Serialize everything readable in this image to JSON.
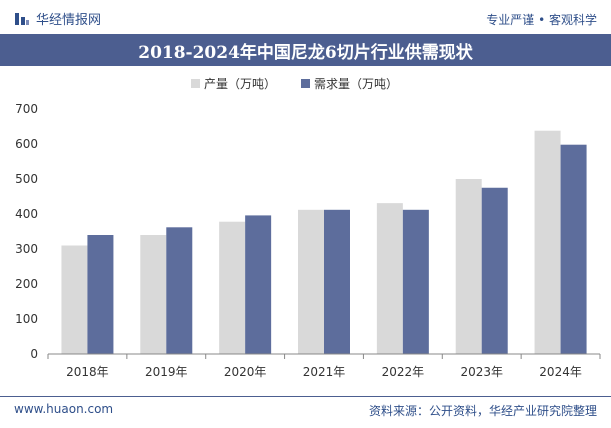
{
  "header": {
    "brand_name": "华经情报网",
    "brand_icon": "bar-chart-logo-icon",
    "tagline": "专业严谨 • 客观科学"
  },
  "footer": {
    "website": "www.huaon.com",
    "source": "资料来源：公开资料，华经产业研究院整理"
  },
  "colors": {
    "title_bar": "#4c5e90",
    "production": "#d9d9d9",
    "demand": "#5d6d9c",
    "brand_text": "#2f4f8a"
  },
  "chart_data": {
    "type": "bar",
    "title": "2018-2024年中国尼龙6切片行业供需现状",
    "categories": [
      "2018年",
      "2019年",
      "2020年",
      "2021年",
      "2022年",
      "2023年",
      "2024年"
    ],
    "series": [
      {
        "name": "产量（万吨）",
        "values": [
          310,
          340,
          378,
          412,
          431,
          500,
          638
        ]
      },
      {
        "name": "需求量（万吨）",
        "values": [
          340,
          362,
          396,
          412,
          412,
          475,
          598
        ]
      }
    ],
    "ylim": [
      0,
      700
    ],
    "yticks": [
      0,
      100,
      200,
      300,
      400,
      500,
      600,
      700
    ],
    "xlabel": "",
    "ylabel": "",
    "grid": false,
    "legend_position": "top-center"
  }
}
